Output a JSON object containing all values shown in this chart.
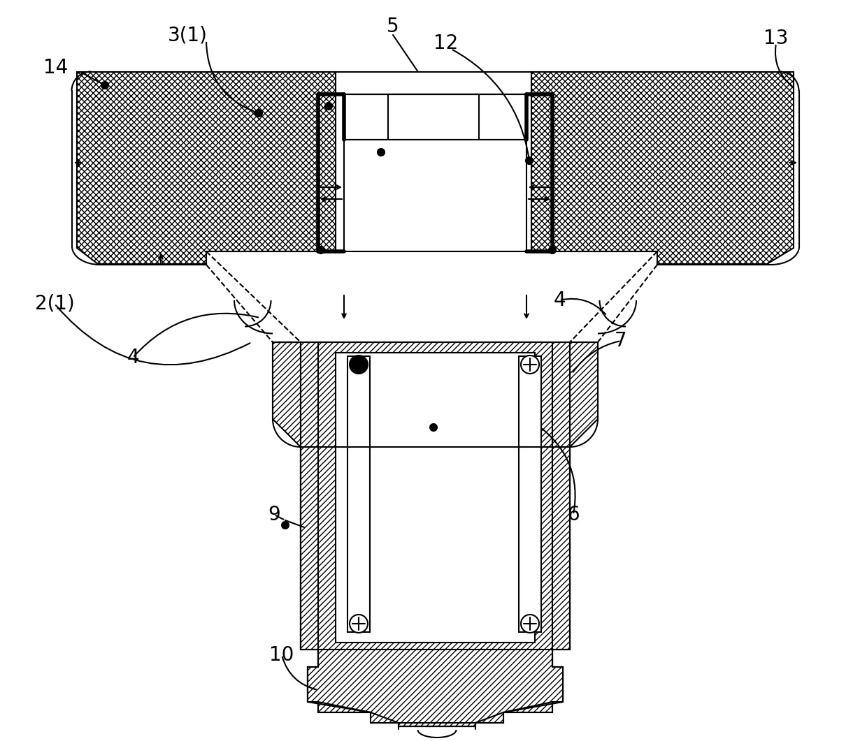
{
  "bg": "#ffffff",
  "lc": "#000000",
  "lw": 1.5,
  "lw_thick": 4.0,
  "fs_label": 20
}
